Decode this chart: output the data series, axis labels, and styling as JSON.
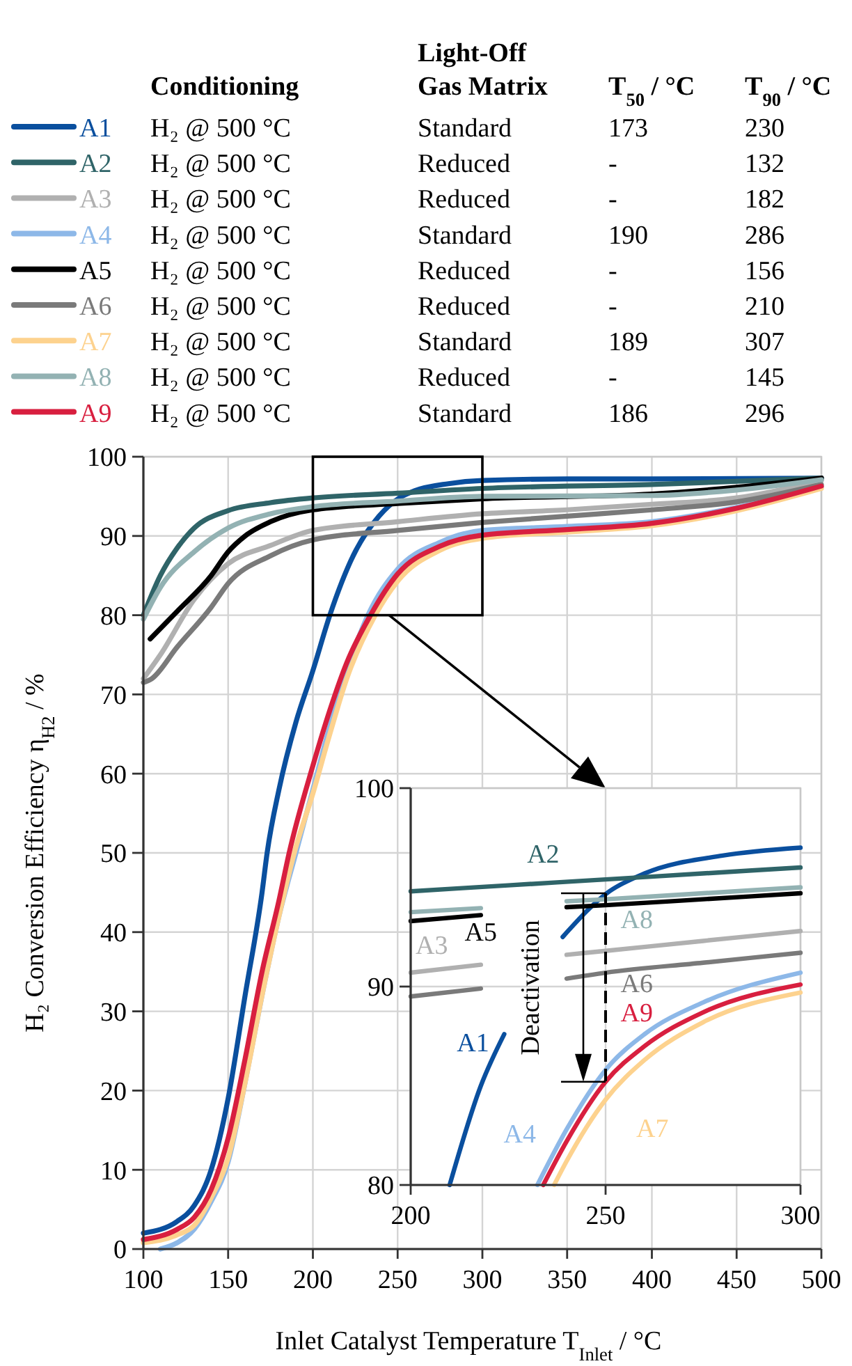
{
  "chart_data": [
    {
      "type": "line",
      "xlabel": "Inlet Catalyst Temperature T$_{Inlet}$ / °C",
      "ylabel": "H₂ Conversion Efficiency η$_{H2}$ / %",
      "xlim": [
        100,
        500
      ],
      "ylim": [
        0,
        100
      ],
      "xticks": [
        100,
        150,
        200,
        250,
        300,
        350,
        400,
        450,
        500
      ],
      "yticks": [
        0,
        10,
        20,
        30,
        40,
        50,
        60,
        70,
        80,
        90,
        100
      ],
      "grid": true,
      "legend": "top",
      "annotations": [
        "Conditioning",
        "Light-Off Gas Matrix",
        "T$_{50}$ / °C",
        "T$_{90}$ / °C",
        "H₂ @ 500 °C",
        "Standard",
        "173",
        "230",
        "H₂ @ 500 °C",
        "Reduced",
        "-",
        "132",
        "H₂ @ 500 °C",
        "Reduced",
        "-",
        "182",
        "H₂ @ 500 °C",
        "Standard",
        "190",
        "286",
        "H₂ @ 500 °C",
        "Reduced",
        "-",
        "156",
        "H₂ @ 500 °C",
        "Reduced",
        "-",
        "210",
        "H₂ @ 500 °C",
        "Standard",
        "189",
        "307",
        "H₂ @ 500 °C",
        "Reduced",
        "-",
        "145",
        "H₂ @ 500 °C",
        "Standard",
        "186",
        "296"
      ],
      "series": [
        {
          "name": "A1",
          "color": "#0a4f9e",
          "x": [
            100,
            120,
            130,
            140,
            150,
            160,
            170,
            173,
            180,
            190,
            200,
            210,
            224,
            239,
            251,
            260,
            280,
            300,
            350,
            400,
            500
          ],
          "values": [
            2,
            3.5,
            5.5,
            10,
            19,
            32,
            45,
            50,
            58,
            66.5,
            73,
            80,
            87.6,
            92.5,
            94.8,
            95.7,
            96.6,
            97,
            97.2,
            97.2,
            97.3
          ]
        },
        {
          "name": "A2",
          "color": "#2f6468",
          "x": [
            100,
            110,
            120,
            130,
            150,
            175,
            200,
            250,
            300,
            400,
            500
          ],
          "values": [
            80,
            85,
            88.5,
            91,
            93.2,
            94.2,
            94.8,
            95.4,
            96,
            96.5,
            97.3
          ]
        },
        {
          "name": "A3",
          "color": "#b0b0b0",
          "x": [
            100,
            110,
            130,
            150,
            175,
            200,
            250,
            300,
            350,
            400,
            450,
            500
          ],
          "values": [
            72,
            75,
            82,
            86.5,
            88.8,
            90.7,
            91.8,
            92.8,
            93.3,
            94,
            94.8,
            97
          ]
        },
        {
          "name": "A4",
          "color": "#8db8e8",
          "x": [
            110,
            120,
            130,
            140,
            150,
            160,
            170,
            180,
            190,
            200,
            210,
            220,
            232.5,
            250,
            275,
            300,
            350,
            400,
            450,
            500
          ],
          "values": [
            0,
            0.8,
            2.5,
            6,
            11,
            21,
            32,
            42,
            50,
            58,
            66,
            73,
            80,
            85.8,
            89.2,
            90.7,
            91.2,
            91.8,
            93.6,
            96.2
          ]
        },
        {
          "name": "A5",
          "color": "#000000",
          "x": [
            104,
            120,
            140,
            150,
            160,
            175,
            200,
            250,
            300,
            400,
            500
          ],
          "values": [
            77,
            80.5,
            85,
            88,
            90,
            91.8,
            93.3,
            94.1,
            94.7,
            95.3,
            97.3
          ]
        },
        {
          "name": "A6",
          "color": "#7a7a7a",
          "x": [
            100,
            105,
            120,
            140,
            150,
            175,
            200,
            250,
            300,
            350,
            400,
            450,
            500
          ],
          "values": [
            71.5,
            72,
            76,
            81,
            84,
            87.5,
            89.5,
            90.7,
            91.7,
            92.5,
            93.3,
            94.3,
            96.5
          ]
        },
        {
          "name": "A7",
          "color": "#fdd28e",
          "x": [
            100,
            120,
            130,
            140,
            150,
            160,
            170,
            180,
            189,
            200,
            210,
            220,
            236.8,
            250,
            275,
            300,
            350,
            400,
            450,
            500
          ],
          "values": [
            0.8,
            1.8,
            3,
            6.5,
            11.5,
            21,
            32,
            42,
            50,
            57.5,
            65,
            72,
            80,
            84.3,
            88.2,
            89.7,
            90.5,
            91.3,
            93.2,
            96
          ]
        },
        {
          "name": "A8",
          "color": "#93b2b3",
          "x": [
            100,
            110,
            130,
            150,
            175,
            200,
            250,
            300,
            400,
            450,
            500
          ],
          "values": [
            79.5,
            83.5,
            88,
            91,
            92.8,
            93.7,
            94.4,
            95,
            95.1,
            95.8,
            97.1
          ]
        },
        {
          "name": "A9",
          "color": "#d81f3f",
          "x": [
            100,
            120,
            130,
            140,
            150,
            160,
            170,
            180,
            186,
            200,
            210,
            220,
            234,
            250,
            275,
            300,
            350,
            400,
            450,
            500
          ],
          "values": [
            1.2,
            2.5,
            4,
            7.5,
            14,
            24,
            35,
            44,
            50,
            61,
            68,
            74,
            80,
            85.2,
            88.7,
            90.1,
            90.8,
            91.6,
            93.5,
            96.3
          ]
        }
      ]
    },
    {
      "type": "line",
      "xlim": [
        200,
        300
      ],
      "ylim": [
        80,
        100
      ],
      "xticks": [
        200,
        250,
        300
      ],
      "yticks": [
        80,
        90,
        100
      ],
      "grid": true,
      "annotations": [
        {
          "text": "Deactivation",
          "x": 250,
          "y": 94.7
        }
      ],
      "series": [
        {
          "name": "A1",
          "color": "#0a4f9e",
          "x": [
            210,
            218,
            224,
            236,
            239,
            251,
            260,
            280,
            300
          ],
          "values": [
            80,
            85,
            87.6,
            null,
            92.5,
            94.8,
            95.7,
            96.6,
            97
          ]
        },
        {
          "name": "A2",
          "color": "#2f6468",
          "x": [
            200,
            225,
            250,
            275,
            300
          ],
          "values": [
            94.8,
            95.1,
            95.4,
            95.7,
            96
          ]
        },
        {
          "name": "A3",
          "color": "#b0b0b0",
          "x": [
            200,
            218,
            228,
            240,
            250,
            275,
            300
          ],
          "values": [
            90.7,
            91.1,
            null,
            91.6,
            91.8,
            92.3,
            92.8
          ]
        },
        {
          "name": "A4",
          "color": "#8db8e8",
          "x": [
            232.5,
            240,
            250,
            260,
            275,
            300
          ],
          "values": [
            80,
            82.8,
            85.8,
            87.6,
            89.2,
            90.7
          ]
        },
        {
          "name": "A5",
          "color": "#000000",
          "x": [
            200,
            218,
            228,
            240,
            250,
            275,
            300
          ],
          "values": [
            93.3,
            93.6,
            null,
            94,
            94.1,
            94.4,
            94.7
          ]
        },
        {
          "name": "A6",
          "color": "#7a7a7a",
          "x": [
            200,
            218,
            228,
            240,
            250,
            275,
            300
          ],
          "values": [
            89.5,
            89.9,
            null,
            90.4,
            90.7,
            91.2,
            91.7
          ]
        },
        {
          "name": "A7",
          "color": "#fdd28e",
          "x": [
            236.8,
            240,
            250,
            260,
            275,
            300
          ],
          "values": [
            80,
            81.2,
            84.3,
            86.3,
            88.2,
            89.7
          ]
        },
        {
          "name": "A8",
          "color": "#93b2b3",
          "x": [
            200,
            218,
            228,
            240,
            250,
            275,
            300
          ],
          "values": [
            93.75,
            93.95,
            null,
            94.3,
            94.4,
            94.7,
            95
          ]
        },
        {
          "name": "A9",
          "color": "#d81f3f",
          "x": [
            234,
            240,
            250,
            260,
            275,
            300
          ],
          "values": [
            80,
            82.2,
            85.2,
            87,
            88.7,
            90.1
          ]
        }
      ]
    }
  ]
}
